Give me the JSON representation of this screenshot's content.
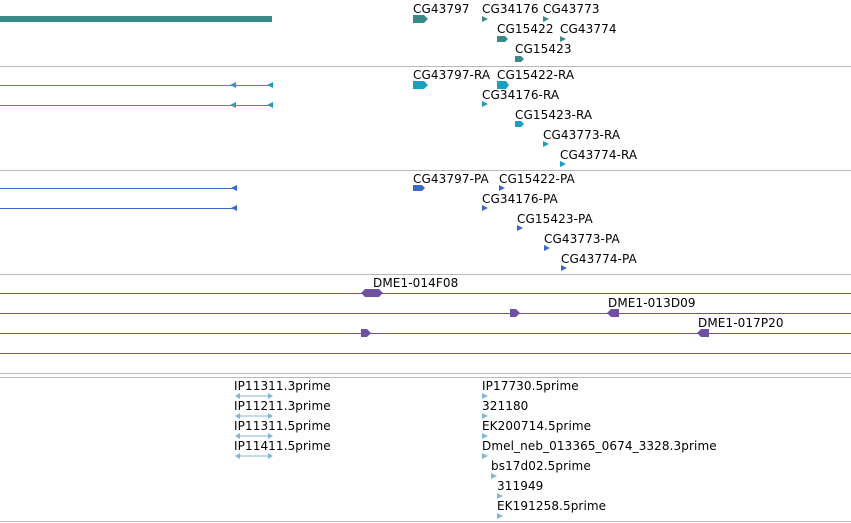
{
  "colors": {
    "gene": "#3a8a8a",
    "transcript": "#1a9ec2",
    "protein": "#3a6ac8",
    "clone": "#7050a0",
    "est": "#80b8d8",
    "divider": "#b8b8b8"
  },
  "tracks": {
    "genes": {
      "labels": [
        "CG43797",
        "CG34176",
        "CG43773",
        "CG15422",
        "CG43774",
        "CG15423"
      ]
    },
    "transcripts": {
      "labels": [
        "CG43797-RA",
        "CG15422-RA",
        "CG34176-RA",
        "CG15423-RA",
        "CG43773-RA",
        "CG43774-RA"
      ]
    },
    "proteins": {
      "labels": [
        "CG43797-PA",
        "CG15422-PA",
        "CG34176-PA",
        "CG15423-PA",
        "CG43773-PA",
        "CG43774-PA"
      ]
    },
    "clones": {
      "labels": [
        "DME1-014F08",
        "DME1-013D09",
        "DME1-017P20"
      ]
    },
    "ests": {
      "labels": [
        "IP11311.3prime",
        "IP11211.3prime",
        "IP11311.5prime",
        "IP11411.5prime",
        "IP17730.5prime",
        "321180",
        "EK200714.5prime",
        "Dmel_neb_013365_0674_3328.3prime",
        "bs17d02.5prime",
        "311949",
        "EK191258.5prime"
      ]
    }
  }
}
